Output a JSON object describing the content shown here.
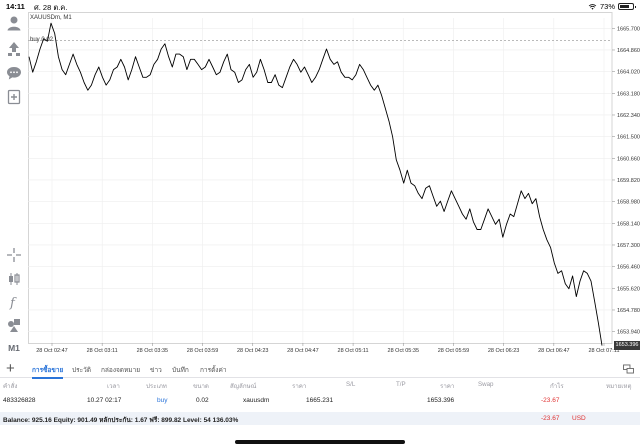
{
  "status_bar": {
    "time": "14:11",
    "date": "ศ. 28 ต.ค.",
    "battery": "73%",
    "battery_level": 0.73
  },
  "chart": {
    "symbol": "XAUUSDm, M1",
    "buy_label": "buy 0.02",
    "current_price_tag": "1653.396",
    "colors": {
      "line": "#000000",
      "grid": "#eeeeee",
      "buy_line": "#b0b0b0",
      "price_tag_bg": "#3a3a3a"
    }
  },
  "chart_data": {
    "type": "line",
    "x_ticks": [
      "28 Oct 02:47",
      "28 Oct 03:11",
      "28 Oct 03:35",
      "28 Oct 03:59",
      "28 Oct 04:23",
      "28 Oct 04:47",
      "28 Oct 05:11",
      "28 Oct 05:35",
      "28 Oct 05:59",
      "28 Oct 06:23",
      "28 Oct 06:47",
      "28 Oct 07:11"
    ],
    "y_ticks": [
      "1665.700",
      "1664.860",
      "1664.020",
      "1663.180",
      "1662.340",
      "1661.500",
      "1660.660",
      "1659.820",
      "1658.980",
      "1658.140",
      "1657.300",
      "1656.460",
      "1655.620",
      "1654.780",
      "1653.940"
    ],
    "ylim": [
      1653.5,
      1666.1
    ],
    "buy_level": 1665.231,
    "series": [
      {
        "values": [
          1664.6,
          1664.0,
          1664.4,
          1664.9,
          1665.3,
          1665.2,
          1665.9,
          1665.5,
          1664.6,
          1664.1,
          1663.9,
          1664.3,
          1664.7,
          1664.3,
          1664.0,
          1663.6,
          1663.3,
          1663.5,
          1663.9,
          1664.2,
          1663.8,
          1663.5,
          1663.7,
          1664.1,
          1664.2,
          1664.5,
          1664.2,
          1663.7,
          1664.1,
          1664.6,
          1664.2,
          1663.8,
          1663.8,
          1663.9,
          1664.3,
          1664.5,
          1664.9,
          1665.1,
          1664.6,
          1664.2,
          1664.7,
          1664.7,
          1664.6,
          1664.1,
          1664.5,
          1664.5,
          1664.3,
          1664.1,
          1664.2,
          1664.5,
          1664.2,
          1663.9,
          1664.0,
          1664.4,
          1664.7,
          1664.1,
          1664.0,
          1663.6,
          1663.7,
          1664.1,
          1664.3,
          1663.8,
          1664.0,
          1664.5,
          1664.1,
          1663.6,
          1663.6,
          1663.9,
          1663.5,
          1663.4,
          1663.8,
          1664.2,
          1664.5,
          1664.3,
          1664.0,
          1664.2,
          1663.9,
          1663.6,
          1663.8,
          1664.1,
          1664.5,
          1664.9,
          1664.5,
          1664.3,
          1664.4,
          1664.0,
          1663.8,
          1663.8,
          1663.7,
          1663.9,
          1664.3,
          1664.1,
          1663.8,
          1663.5,
          1663.3,
          1663.5,
          1663.1,
          1662.6,
          1662.1,
          1661.5,
          1660.6,
          1660.2,
          1659.7,
          1660.2,
          1659.7,
          1659.6,
          1659.3,
          1659.1,
          1659.5,
          1659.6,
          1659.2,
          1658.8,
          1659.0,
          1658.6,
          1659.0,
          1659.4,
          1659.1,
          1658.8,
          1658.5,
          1658.3,
          1658.7,
          1658.2,
          1657.9,
          1657.9,
          1658.3,
          1658.7,
          1658.4,
          1658.1,
          1658.3,
          1657.6,
          1658.1,
          1658.5,
          1658.4,
          1658.9,
          1659.4,
          1659.1,
          1659.3,
          1658.9,
          1659.1,
          1658.4,
          1657.9,
          1657.5,
          1657.2,
          1656.6,
          1656.2,
          1656.3,
          1655.8,
          1655.6,
          1656.1,
          1655.3,
          1655.9,
          1656.3,
          1656.2,
          1655.9,
          1655.1,
          1654.3,
          1653.4
        ]
      }
    ]
  },
  "toolbar": {
    "timeframe": "M1"
  },
  "tabs": [
    {
      "label": "การซื้อขาย",
      "active": true
    },
    {
      "label": "ประวัติ",
      "active": false
    },
    {
      "label": "กล่องจดหมาย",
      "active": false
    },
    {
      "label": "ข่าว",
      "active": false
    },
    {
      "label": "บันทึก",
      "active": false
    },
    {
      "label": "การตั้งค่า",
      "active": false
    }
  ],
  "table": {
    "headers": [
      "คำสั่ง",
      "เวลา",
      "ประเภท",
      "ขนาด",
      "สัญลักษณ์",
      "ราคา",
      "S/L",
      "T/P",
      "ราคา",
      "Swap",
      "กำไร",
      "หมายเหตุ"
    ],
    "row": {
      "order": "483326828",
      "time": "10.27 02:17",
      "type": "buy",
      "size": "0.02",
      "symbol": "xauusdm",
      "open_price": "1665.231",
      "current_price": "1653.396",
      "profit": "-23.67"
    }
  },
  "balance": {
    "text": "Balance: 925.16 Equity: 901.49 หลักประกัน: 1.67 ฟรี: 899.82 Level: 54 136.03%",
    "profit": "-23.67",
    "currency": "USD"
  }
}
